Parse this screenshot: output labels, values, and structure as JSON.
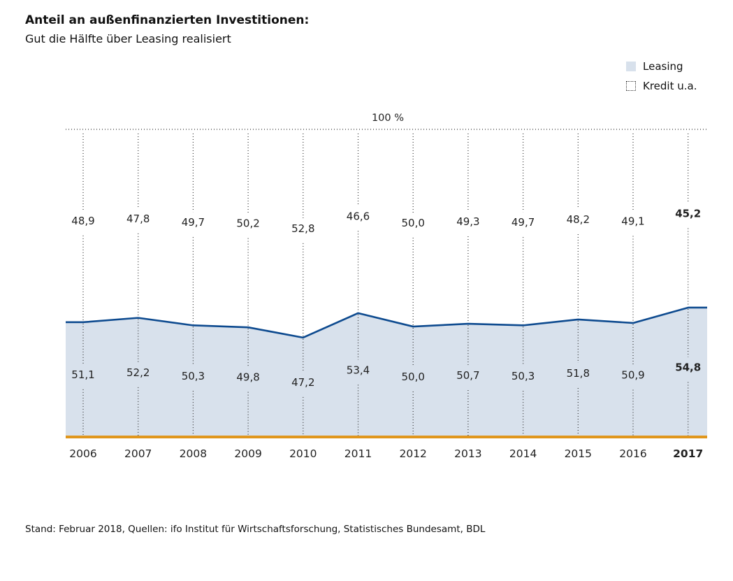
{
  "header": {
    "title": "Anteil an außenfinanzierten Investitionen:",
    "subtitle": "Gut die Hälfte über Leasing realisiert"
  },
  "legend": {
    "leasing": "Leasing",
    "kredit": "Kredit u.a."
  },
  "footnote": "Stand: Februar 2018, Quellen: ifo Institut für Wirtschaftsforschung, Statistisches Bundesamt, BDL",
  "colors": {
    "leasing_fill": "#d8e1ec",
    "line": "#0d4a8f",
    "baseline": "#e0961c"
  },
  "chart_data": {
    "type": "area",
    "title": "Anteil an außenfinanzierten Investitionen:",
    "subtitle": "Gut die Hälfte über Leasing realisiert",
    "top_label": "100 %",
    "categories": [
      "2006",
      "2007",
      "2008",
      "2009",
      "2010",
      "2011",
      "2012",
      "2013",
      "2014",
      "2015",
      "2016",
      "2017"
    ],
    "series": [
      {
        "name": "Leasing",
        "values": [
          51.1,
          52.2,
          50.3,
          49.8,
          47.2,
          53.4,
          50.0,
          50.7,
          50.3,
          51.8,
          50.9,
          54.8
        ],
        "labels": [
          "51,1",
          "52,2",
          "50,3",
          "49,8",
          "47,2",
          "53,4",
          "50,0",
          "50,7",
          "50,3",
          "51,8",
          "50,9",
          "54,8"
        ]
      },
      {
        "name": "Kredit u.a.",
        "values": [
          48.9,
          47.8,
          49.7,
          50.2,
          52.8,
          46.6,
          50.0,
          49.3,
          49.7,
          48.2,
          49.1,
          45.2
        ],
        "labels": [
          "48,9",
          "47,8",
          "49,7",
          "50,2",
          "52,8",
          "46,6",
          "50,0",
          "49,3",
          "49,7",
          "48,2",
          "49,1",
          "45,2"
        ]
      }
    ],
    "highlight_category": "2017",
    "ylim": [
      22,
      100
    ],
    "xlabel": "",
    "ylabel": ""
  }
}
